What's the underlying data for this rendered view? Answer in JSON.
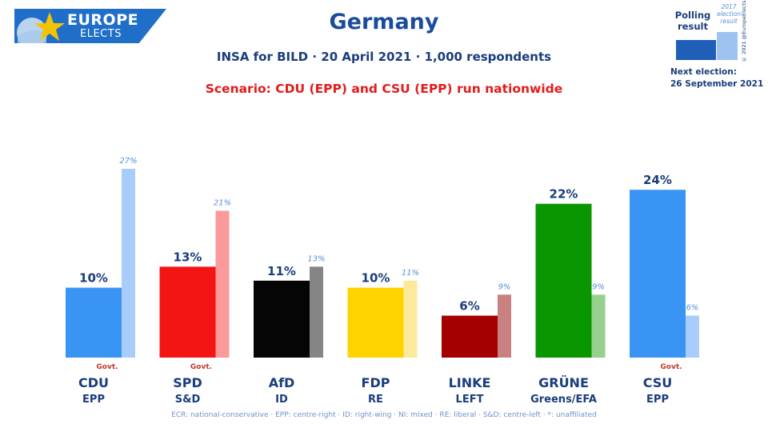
{
  "header": {
    "logo_line1": "EUROPE",
    "logo_line2": "ELECTS",
    "title": "Germany",
    "subtitle": "INSA for BILD · 20 April 2021 · 1,000 respondents",
    "scenario": "Scenario: CDU (EPP) and CSU (EPP) run nationwide"
  },
  "legend": {
    "polling_label": "Polling result",
    "previous_label": "2017 election result",
    "copyright": "© 2021 @EuropeElects",
    "next_election_label": "Next election:",
    "next_election_date": "26 September 2021"
  },
  "footer": "ECR: national-conservative · EPP: centre-right · ID: right-wing · NI: mixed · RE: liberal · S&D: centre-left · *: unaffiliated",
  "colors": {
    "brand": "#1f6fc9",
    "title": "#1a4c9c",
    "scenario": "#e41a1c",
    "govt": "#c0392b"
  },
  "chart_data": {
    "type": "bar",
    "categories": [
      "CDU",
      "SPD",
      "AfD",
      "FDP",
      "LINKE",
      "GRÜNE",
      "CSU"
    ],
    "groups": [
      "EPP",
      "S&D",
      "ID",
      "RE",
      "LEFT",
      "Greens/EFA",
      "EPP"
    ],
    "series": [
      {
        "values": [
          10,
          13,
          11,
          10,
          6,
          22,
          24
        ],
        "labels": [
          "10%",
          "13%",
          "11%",
          "10%",
          "6%",
          "22%",
          "24%"
        ],
        "colors": [
          "#3a94f3",
          "#f41414",
          "#050505",
          "#fed300",
          "#a40000",
          "#0a9600",
          "#3a94f3"
        ]
      },
      {
        "values": [
          27,
          21,
          13,
          11,
          9,
          9,
          6
        ],
        "labels": [
          "27%",
          "21%",
          "13%",
          "11%",
          "9%",
          "9%",
          "6%"
        ],
        "colors": [
          "#a9cdfb",
          "#fb9a9a",
          "#858585",
          "#fde99c",
          "#c88080",
          "#96d08d",
          "#a9cdfb"
        ]
      }
    ],
    "govt_label": "Govt.",
    "govt": [
      true,
      true,
      false,
      false,
      false,
      false,
      true
    ],
    "ylim": [
      0,
      27
    ],
    "grid": false,
    "legend": "top-right"
  }
}
